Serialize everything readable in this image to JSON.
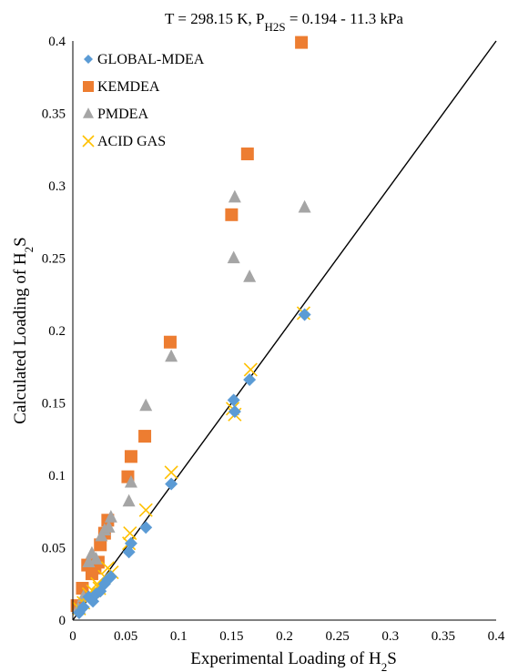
{
  "chart_data": {
    "type": "scatter",
    "title": {
      "main": "T = 298.15  K,  P",
      "sub": "H2S",
      "tail": " = 0.194  - 11.3  kPa"
    },
    "xlabel": {
      "main": "Experimental  Loading of H",
      "sub": "2",
      "tail": "S"
    },
    "ylabel": {
      "main": "Calculated Loading of H",
      "sub": "2",
      "tail": "S"
    },
    "xlim": [
      0,
      0.4
    ],
    "ylim": [
      0,
      0.4
    ],
    "xticks": [
      "0",
      "0.05",
      "0.1",
      "0.15",
      "0.2",
      "0.25",
      "0.3",
      "0.35",
      "0.4"
    ],
    "yticks": [
      "0",
      "0.05",
      "0.1",
      "0.15",
      "0.2",
      "0.25",
      "0.3",
      "0.35",
      "0.4"
    ],
    "grid": false,
    "legend_position": "top-left",
    "reference_line": {
      "x": [
        0,
        0.4
      ],
      "y": [
        0,
        0.4
      ],
      "color": "#000000"
    },
    "series": [
      {
        "name": "KEMDEA",
        "marker": "square",
        "color": "#ED7D31",
        "points": [
          [
            0.004,
            0.01
          ],
          [
            0.009,
            0.022
          ],
          [
            0.014,
            0.038
          ],
          [
            0.018,
            0.032
          ],
          [
            0.021,
            0.036
          ],
          [
            0.024,
            0.04
          ],
          [
            0.026,
            0.052
          ],
          [
            0.03,
            0.06
          ],
          [
            0.033,
            0.069
          ],
          [
            0.052,
            0.099
          ],
          [
            0.055,
            0.113
          ],
          [
            0.068,
            0.127
          ],
          [
            0.092,
            0.192
          ],
          [
            0.15,
            0.28
          ],
          [
            0.165,
            0.322
          ],
          [
            0.216,
            0.399
          ]
        ]
      },
      {
        "name": "PMDEA",
        "marker": "triangle",
        "color": "#A5A5A5",
        "points": [
          [
            0.005,
            0.008
          ],
          [
            0.01,
            0.016
          ],
          [
            0.015,
            0.04
          ],
          [
            0.018,
            0.046
          ],
          [
            0.022,
            0.042
          ],
          [
            0.027,
            0.058
          ],
          [
            0.03,
            0.062
          ],
          [
            0.034,
            0.064
          ],
          [
            0.036,
            0.071
          ],
          [
            0.053,
            0.082
          ],
          [
            0.055,
            0.095
          ],
          [
            0.069,
            0.148
          ],
          [
            0.093,
            0.182
          ],
          [
            0.152,
            0.25
          ],
          [
            0.153,
            0.292
          ],
          [
            0.167,
            0.237
          ],
          [
            0.219,
            0.285
          ]
        ]
      },
      {
        "name": "ACID GAS",
        "marker": "x",
        "color": "#FFC000",
        "points": [
          [
            0.006,
            0.008
          ],
          [
            0.01,
            0.012
          ],
          [
            0.015,
            0.018
          ],
          [
            0.019,
            0.02
          ],
          [
            0.023,
            0.025
          ],
          [
            0.025,
            0.022
          ],
          [
            0.03,
            0.03
          ],
          [
            0.033,
            0.036
          ],
          [
            0.037,
            0.033
          ],
          [
            0.053,
            0.053
          ],
          [
            0.054,
            0.06
          ],
          [
            0.069,
            0.076
          ],
          [
            0.093,
            0.102
          ],
          [
            0.151,
            0.146
          ],
          [
            0.153,
            0.142
          ],
          [
            0.168,
            0.173
          ],
          [
            0.218,
            0.212
          ]
        ]
      },
      {
        "name": "GLOBAL-MDEA",
        "marker": "diamond",
        "color": "#5B9BD5",
        "points": [
          [
            0.006,
            0.005
          ],
          [
            0.01,
            0.009
          ],
          [
            0.015,
            0.016
          ],
          [
            0.019,
            0.013
          ],
          [
            0.022,
            0.018
          ],
          [
            0.026,
            0.02
          ],
          [
            0.03,
            0.025
          ],
          [
            0.033,
            0.028
          ],
          [
            0.036,
            0.03
          ],
          [
            0.053,
            0.047
          ],
          [
            0.055,
            0.053
          ],
          [
            0.069,
            0.064
          ],
          [
            0.093,
            0.094
          ],
          [
            0.152,
            0.152
          ],
          [
            0.153,
            0.144
          ],
          [
            0.167,
            0.166
          ],
          [
            0.219,
            0.211
          ]
        ]
      }
    ],
    "legend_order": [
      "GLOBAL-MDEA",
      "KEMDEA",
      "PMDEA",
      "ACID GAS"
    ]
  }
}
